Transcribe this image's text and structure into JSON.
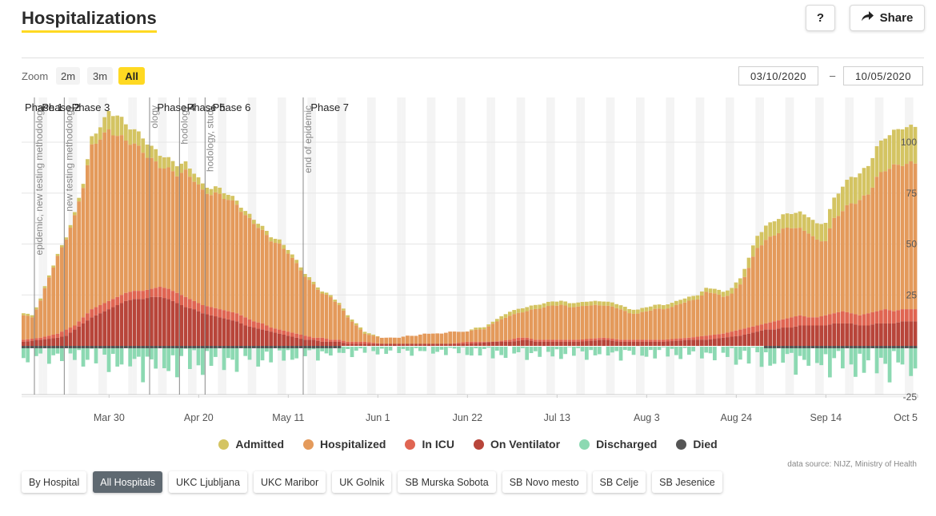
{
  "header": {
    "title": "Hospitalizations",
    "help_label": "?",
    "share_label": "Share"
  },
  "zoom": {
    "label": "Zoom",
    "buttons": [
      "2m",
      "3m",
      "All"
    ],
    "active": "All"
  },
  "date_range": {
    "from": "03/10/2020",
    "separator": "–",
    "to": "10/05/2020"
  },
  "colors": {
    "admitted": "#d4c462",
    "hospitalized": "#e49a5b",
    "icu": "#e06552",
    "ventilator": "#b8453a",
    "discharged": "#8cd9b2",
    "died": "#555555",
    "accent": "#ffd922"
  },
  "chart_data": {
    "type": "bar",
    "start_date": "2020-03-10",
    "end_date": "2020-10-05",
    "ylim": [
      -25,
      110
    ],
    "y_ticks": [
      -25,
      25,
      50,
      75,
      100
    ],
    "x_ticks": [
      {
        "date": "2020-03-30",
        "label": "Mar 30"
      },
      {
        "date": "2020-04-20",
        "label": "Apr 20"
      },
      {
        "date": "2020-05-11",
        "label": "May 11"
      },
      {
        "date": "2020-06-01",
        "label": "Jun 1"
      },
      {
        "date": "2020-06-22",
        "label": "Jun 22"
      },
      {
        "date": "2020-07-13",
        "label": "Jul 13"
      },
      {
        "date": "2020-08-03",
        "label": "Aug 3"
      },
      {
        "date": "2020-08-24",
        "label": "Aug 24"
      },
      {
        "date": "2020-09-14",
        "label": "Sep 14"
      },
      {
        "date": "2020-10-05",
        "label": "Oct 5"
      }
    ],
    "phases": [
      {
        "label": "Phase 1",
        "date": "2020-03-10"
      },
      {
        "label": "Phase 2",
        "date": "2020-03-14"
      },
      {
        "label": "Phase 3",
        "date": "2020-03-21"
      },
      {
        "label": "Phase 4",
        "date": "2020-04-10"
      },
      {
        "label": "Phase 5",
        "date": "2020-04-17"
      },
      {
        "label": "Phase 6",
        "date": "2020-04-23"
      },
      {
        "label": "Phase 7",
        "date": "2020-05-16"
      }
    ],
    "events": [
      {
        "date": "2020-03-13",
        "text": "epidemic, new testing methodology"
      },
      {
        "date": "2020-03-20",
        "text": "new testing methodology"
      },
      {
        "date": "2020-04-09",
        "text": "ology"
      },
      {
        "date": "2020-04-16",
        "text": "hodology"
      },
      {
        "date": "2020-04-22",
        "text": "hodology, study"
      },
      {
        "date": "2020-05-15",
        "text": "end of epidemic"
      }
    ],
    "series": [
      {
        "name": "Admitted",
        "key": "admitted"
      },
      {
        "name": "Hospitalized",
        "key": "hospitalized"
      },
      {
        "name": "In ICU",
        "key": "icu"
      },
      {
        "name": "On Ventilator",
        "key": "ventilator"
      },
      {
        "name": "Discharged",
        "key": "discharged"
      },
      {
        "name": "Died",
        "key": "died"
      }
    ],
    "keyframes": {
      "hospitalized": [
        [
          0,
          15
        ],
        [
          2,
          14
        ],
        [
          4,
          22
        ],
        [
          6,
          34
        ],
        [
          8,
          44
        ],
        [
          10,
          53
        ],
        [
          12,
          63
        ],
        [
          14,
          78
        ],
        [
          16,
          98
        ],
        [
          18,
          103
        ],
        [
          20,
          106
        ],
        [
          22,
          103
        ],
        [
          24,
          100
        ],
        [
          26,
          99
        ],
        [
          28,
          96
        ],
        [
          30,
          92
        ],
        [
          32,
          88
        ],
        [
          34,
          86
        ],
        [
          36,
          84
        ],
        [
          38,
          86
        ],
        [
          40,
          82
        ],
        [
          42,
          76
        ],
        [
          44,
          74
        ],
        [
          46,
          74
        ],
        [
          48,
          72
        ],
        [
          50,
          70
        ],
        [
          52,
          64
        ],
        [
          54,
          60
        ],
        [
          56,
          56
        ],
        [
          58,
          52
        ],
        [
          60,
          50
        ],
        [
          62,
          46
        ],
        [
          64,
          40
        ],
        [
          66,
          34
        ],
        [
          68,
          30
        ],
        [
          70,
          26
        ],
        [
          72,
          24
        ],
        [
          74,
          20
        ],
        [
          76,
          14
        ],
        [
          78,
          10
        ],
        [
          80,
          6
        ],
        [
          82,
          5
        ],
        [
          84,
          4
        ],
        [
          86,
          4
        ],
        [
          88,
          4
        ],
        [
          90,
          5
        ],
        [
          92,
          5
        ],
        [
          94,
          6
        ],
        [
          96,
          6
        ],
        [
          98,
          6
        ],
        [
          100,
          7
        ],
        [
          102,
          7
        ],
        [
          104,
          7
        ],
        [
          106,
          8
        ],
        [
          108,
          8
        ],
        [
          110,
          11
        ],
        [
          112,
          13
        ],
        [
          114,
          15
        ],
        [
          116,
          16
        ],
        [
          118,
          17
        ],
        [
          120,
          18
        ],
        [
          122,
          19
        ],
        [
          124,
          20
        ],
        [
          126,
          20
        ],
        [
          128,
          19
        ],
        [
          130,
          19
        ],
        [
          132,
          20
        ],
        [
          134,
          20
        ],
        [
          136,
          20
        ],
        [
          138,
          19
        ],
        [
          140,
          18
        ],
        [
          142,
          16
        ],
        [
          144,
          16
        ],
        [
          146,
          17
        ],
        [
          148,
          18
        ],
        [
          150,
          18
        ],
        [
          152,
          19
        ],
        [
          154,
          21
        ],
        [
          156,
          22
        ],
        [
          158,
          23
        ],
        [
          160,
          26
        ],
        [
          162,
          26
        ],
        [
          164,
          24
        ],
        [
          166,
          26
        ],
        [
          168,
          30
        ],
        [
          170,
          38
        ],
        [
          172,
          48
        ],
        [
          174,
          52
        ],
        [
          176,
          55
        ],
        [
          178,
          57
        ],
        [
          180,
          58
        ],
        [
          182,
          57
        ],
        [
          184,
          56
        ],
        [
          186,
          52
        ],
        [
          188,
          52
        ],
        [
          190,
          62
        ],
        [
          192,
          66
        ],
        [
          194,
          70
        ],
        [
          196,
          72
        ],
        [
          198,
          75
        ],
        [
          200,
          82
        ],
        [
          202,
          86
        ],
        [
          204,
          88
        ],
        [
          206,
          90
        ]
      ],
      "admitted": [
        [
          0,
          1
        ],
        [
          10,
          1
        ],
        [
          14,
          2
        ],
        [
          16,
          4
        ],
        [
          18,
          6
        ],
        [
          20,
          9
        ],
        [
          22,
          10
        ],
        [
          24,
          8
        ],
        [
          26,
          7
        ],
        [
          28,
          7
        ],
        [
          30,
          6
        ],
        [
          32,
          6
        ],
        [
          34,
          5
        ],
        [
          36,
          5
        ],
        [
          38,
          4
        ],
        [
          40,
          4
        ],
        [
          42,
          3
        ],
        [
          46,
          3
        ],
        [
          50,
          2
        ],
        [
          60,
          2
        ],
        [
          70,
          1
        ],
        [
          80,
          1
        ],
        [
          84,
          0
        ],
        [
          104,
          0
        ],
        [
          106,
          1
        ],
        [
          110,
          1
        ],
        [
          114,
          2
        ],
        [
          130,
          2
        ],
        [
          140,
          2
        ],
        [
          150,
          2
        ],
        [
          160,
          2
        ],
        [
          168,
          3
        ],
        [
          170,
          5
        ],
        [
          172,
          6
        ],
        [
          174,
          7
        ],
        [
          176,
          7
        ],
        [
          178,
          7
        ],
        [
          180,
          7
        ],
        [
          182,
          8
        ],
        [
          184,
          8
        ],
        [
          186,
          8
        ],
        [
          188,
          9
        ],
        [
          190,
          10
        ],
        [
          192,
          12
        ],
        [
          194,
          13
        ],
        [
          196,
          13
        ],
        [
          198,
          14
        ],
        [
          200,
          15
        ],
        [
          202,
          16
        ],
        [
          204,
          17
        ],
        [
          206,
          18
        ]
      ],
      "icu": [
        [
          0,
          3
        ],
        [
          4,
          4
        ],
        [
          8,
          6
        ],
        [
          10,
          8
        ],
        [
          12,
          10
        ],
        [
          14,
          14
        ],
        [
          16,
          18
        ],
        [
          18,
          20
        ],
        [
          20,
          22
        ],
        [
          22,
          24
        ],
        [
          24,
          26
        ],
        [
          26,
          27
        ],
        [
          28,
          27
        ],
        [
          30,
          28
        ],
        [
          32,
          29
        ],
        [
          34,
          28
        ],
        [
          36,
          26
        ],
        [
          38,
          24
        ],
        [
          40,
          22
        ],
        [
          42,
          20
        ],
        [
          44,
          19
        ],
        [
          46,
          18
        ],
        [
          48,
          17
        ],
        [
          50,
          16
        ],
        [
          52,
          14
        ],
        [
          54,
          12
        ],
        [
          56,
          11
        ],
        [
          58,
          9
        ],
        [
          60,
          8
        ],
        [
          62,
          7
        ],
        [
          64,
          6
        ],
        [
          66,
          5
        ],
        [
          68,
          4
        ],
        [
          70,
          4
        ],
        [
          72,
          3
        ],
        [
          74,
          3
        ],
        [
          76,
          2
        ],
        [
          80,
          2
        ],
        [
          84,
          1
        ],
        [
          100,
          1
        ],
        [
          104,
          2
        ],
        [
          110,
          2
        ],
        [
          114,
          3
        ],
        [
          116,
          4
        ],
        [
          118,
          4
        ],
        [
          120,
          3
        ],
        [
          130,
          3
        ],
        [
          136,
          4
        ],
        [
          140,
          3
        ],
        [
          150,
          3
        ],
        [
          156,
          4
        ],
        [
          160,
          5
        ],
        [
          164,
          6
        ],
        [
          168,
          8
        ],
        [
          170,
          9
        ],
        [
          172,
          10
        ],
        [
          174,
          11
        ],
        [
          176,
          12
        ],
        [
          178,
          13
        ],
        [
          180,
          14
        ],
        [
          182,
          15
        ],
        [
          184,
          14
        ],
        [
          186,
          14
        ],
        [
          188,
          15
        ],
        [
          190,
          16
        ],
        [
          192,
          17
        ],
        [
          194,
          16
        ],
        [
          196,
          15
        ],
        [
          198,
          16
        ],
        [
          200,
          17
        ],
        [
          202,
          18
        ],
        [
          204,
          17
        ],
        [
          206,
          18
        ]
      ],
      "ventilator": [
        [
          0,
          2
        ],
        [
          4,
          3
        ],
        [
          8,
          4
        ],
        [
          10,
          5
        ],
        [
          12,
          8
        ],
        [
          14,
          11
        ],
        [
          16,
          14
        ],
        [
          18,
          16
        ],
        [
          20,
          18
        ],
        [
          22,
          20
        ],
        [
          24,
          22
        ],
        [
          26,
          23
        ],
        [
          28,
          23
        ],
        [
          30,
          24
        ],
        [
          32,
          24
        ],
        [
          34,
          23
        ],
        [
          36,
          21
        ],
        [
          38,
          19
        ],
        [
          40,
          18
        ],
        [
          42,
          16
        ],
        [
          44,
          15
        ],
        [
          46,
          14
        ],
        [
          48,
          13
        ],
        [
          50,
          12
        ],
        [
          52,
          10
        ],
        [
          54,
          9
        ],
        [
          56,
          8
        ],
        [
          58,
          7
        ],
        [
          60,
          6
        ],
        [
          62,
          5
        ],
        [
          64,
          4
        ],
        [
          66,
          3
        ],
        [
          68,
          3
        ],
        [
          70,
          2
        ],
        [
          74,
          2
        ],
        [
          76,
          1
        ],
        [
          84,
          1
        ],
        [
          100,
          1
        ],
        [
          104,
          1
        ],
        [
          110,
          2
        ],
        [
          114,
          2
        ],
        [
          118,
          3
        ],
        [
          120,
          2
        ],
        [
          130,
          2
        ],
        [
          136,
          3
        ],
        [
          140,
          2
        ],
        [
          150,
          2
        ],
        [
          156,
          3
        ],
        [
          160,
          3
        ],
        [
          164,
          4
        ],
        [
          168,
          5
        ],
        [
          170,
          6
        ],
        [
          172,
          7
        ],
        [
          174,
          8
        ],
        [
          176,
          8
        ],
        [
          178,
          9
        ],
        [
          180,
          9
        ],
        [
          182,
          10
        ],
        [
          184,
          10
        ],
        [
          186,
          10
        ],
        [
          188,
          10
        ],
        [
          190,
          11
        ],
        [
          192,
          11
        ],
        [
          194,
          11
        ],
        [
          196,
          10
        ],
        [
          198,
          10
        ],
        [
          200,
          11
        ],
        [
          202,
          11
        ],
        [
          204,
          11
        ],
        [
          206,
          12
        ]
      ],
      "discharged": [
        [
          0,
          -4
        ],
        [
          10,
          -4
        ],
        [
          20,
          -6
        ],
        [
          30,
          -8
        ],
        [
          40,
          -7
        ],
        [
          50,
          -6
        ],
        [
          60,
          -4
        ],
        [
          70,
          -3
        ],
        [
          80,
          -2
        ],
        [
          90,
          -2
        ],
        [
          100,
          -2
        ],
        [
          110,
          -3
        ],
        [
          120,
          -3
        ],
        [
          130,
          -3
        ],
        [
          140,
          -3
        ],
        [
          150,
          -3
        ],
        [
          160,
          -3
        ],
        [
          170,
          -5
        ],
        [
          180,
          -6
        ],
        [
          190,
          -7
        ],
        [
          200,
          -8
        ],
        [
          206,
          -8
        ]
      ],
      "died": [
        [
          0,
          -1
        ],
        [
          10,
          -1
        ],
        [
          20,
          -1
        ],
        [
          30,
          -2
        ],
        [
          40,
          -1
        ],
        [
          60,
          -1
        ],
        [
          80,
          0
        ],
        [
          170,
          0
        ],
        [
          180,
          -1
        ],
        [
          206,
          -1
        ]
      ]
    }
  },
  "legend_labels": [
    "Admitted",
    "Hospitalized",
    "In ICU",
    "On Ventilator",
    "Discharged",
    "Died"
  ],
  "source_text": "data source: NIJZ, Ministry of Health",
  "tabs": [
    "By Hospital",
    "All Hospitals",
    "UKC Ljubljana",
    "UKC Maribor",
    "UK Golnik",
    "SB Murska Sobota",
    "SB Novo mesto",
    "SB Celje",
    "SB Jesenice"
  ],
  "active_tab": "All Hospitals"
}
